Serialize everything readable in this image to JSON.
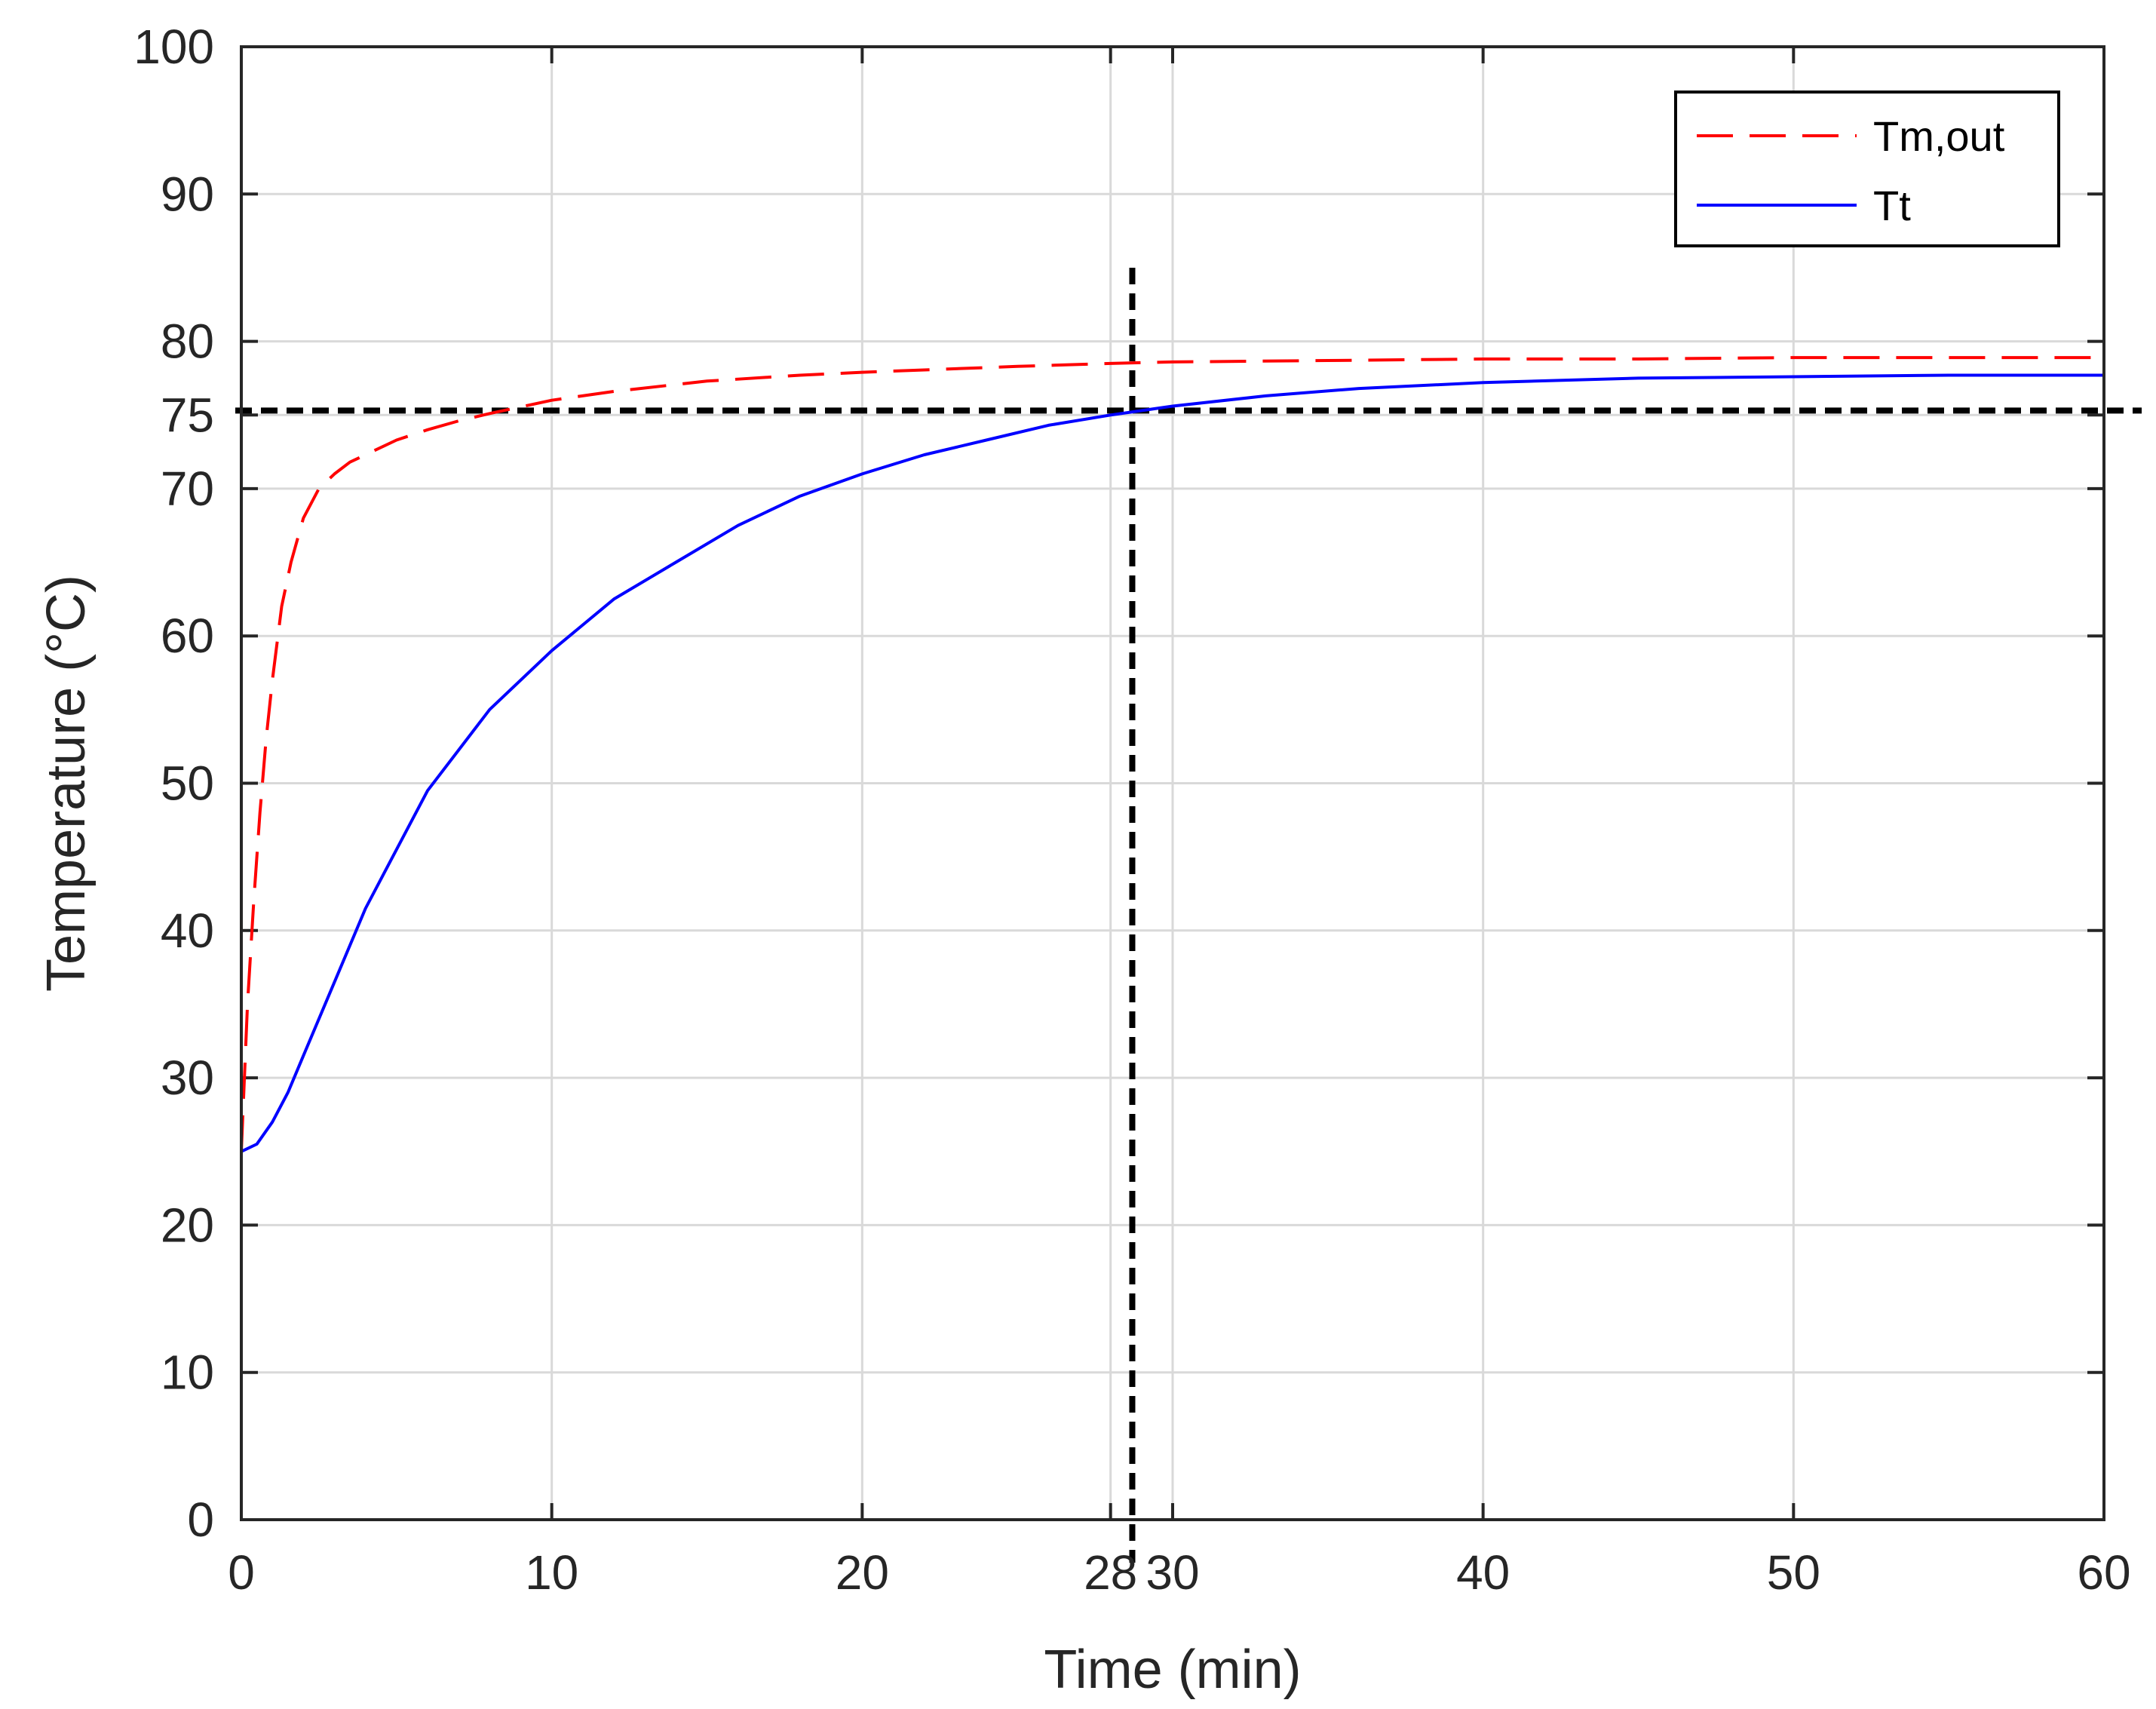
{
  "chart_data": {
    "type": "line",
    "xlabel": "Time (min)",
    "ylabel": "Temperature (°C)",
    "xlim": [
      0,
      60
    ],
    "ylim": [
      0,
      100
    ],
    "xticks": [
      0,
      10,
      20,
      28,
      30,
      40,
      50,
      60
    ],
    "yticks": [
      0,
      10,
      20,
      30,
      40,
      50,
      60,
      70,
      75,
      80,
      90,
      100
    ],
    "grid": true,
    "legend_position": "top-right",
    "reference_lines": [
      {
        "orientation": "vertical",
        "value": 28.7,
        "style": "dashed",
        "color": "#000000"
      },
      {
        "orientation": "horizontal",
        "value": 75.3,
        "style": "dashed",
        "color": "#000000"
      }
    ],
    "series": [
      {
        "name": "Tm,out",
        "color": "#ff0000",
        "style": "dashed",
        "x": [
          0,
          0.2,
          0.4,
          0.6,
          0.8,
          1.0,
          1.3,
          1.6,
          2.0,
          2.5,
          3.0,
          3.5,
          4,
          5,
          6,
          7,
          8,
          10,
          12,
          15,
          18,
          20,
          25,
          28,
          30,
          35,
          40,
          45,
          50,
          55,
          60
        ],
        "values": [
          25,
          35,
          42,
          48,
          53,
          57,
          62,
          65,
          68,
          70,
          71,
          71.8,
          72.3,
          73.3,
          74.0,
          74.6,
          75.1,
          76.0,
          76.6,
          77.3,
          77.7,
          77.9,
          78.3,
          78.5,
          78.6,
          78.7,
          78.8,
          78.8,
          78.9,
          78.9,
          78.9
        ]
      },
      {
        "name": "Tt",
        "color": "#0000ff",
        "style": "solid",
        "x": [
          0,
          0.5,
          1,
          1.5,
          2,
          3,
          4,
          5,
          6,
          8,
          10,
          12,
          14,
          16,
          18,
          20,
          22,
          24,
          26,
          28,
          30,
          33,
          36,
          40,
          45,
          50,
          55,
          60
        ],
        "values": [
          25,
          25.5,
          27,
          29,
          31.5,
          36.5,
          41.5,
          45.5,
          49.5,
          55,
          59,
          62.5,
          65,
          67.5,
          69.5,
          71,
          72.3,
          73.3,
          74.3,
          75,
          75.6,
          76.3,
          76.8,
          77.2,
          77.5,
          77.6,
          77.7,
          77.7
        ]
      }
    ]
  }
}
